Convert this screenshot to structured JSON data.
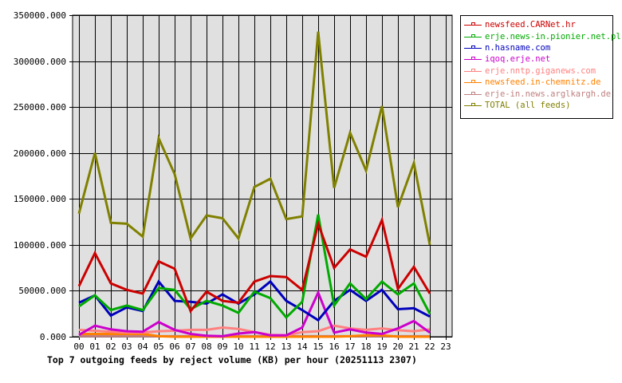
{
  "chart_data": {
    "type": "line",
    "title": "Top 7 outgoing feeds by reject volume (KB) per hour (20251113 2307)",
    "xlabel": "",
    "ylabel": "",
    "x": [
      "00",
      "01",
      "02",
      "03",
      "04",
      "05",
      "06",
      "07",
      "08",
      "09",
      "10",
      "11",
      "12",
      "13",
      "14",
      "15",
      "16",
      "17",
      "18",
      "19",
      "20",
      "21",
      "22",
      "23"
    ],
    "ylim": [
      0,
      350000
    ],
    "yticks": [
      "0.000",
      "50000.000",
      "100000.000",
      "150000.000",
      "200000.000",
      "250000.000",
      "300000.000",
      "350000.000"
    ],
    "ytick_values": [
      0,
      50000,
      100000,
      150000,
      200000,
      250000,
      300000,
      350000
    ],
    "grid": true,
    "legend_position": "right",
    "series": [
      {
        "name": "newsfeed.CARNet.hr",
        "color": "#cc0000",
        "values": [
          55000,
          91000,
          58000,
          51000,
          47000,
          82000,
          74000,
          28000,
          49000,
          39000,
          37000,
          60000,
          66000,
          65000,
          51000,
          123000,
          75000,
          95000,
          87000,
          127000,
          52000,
          76000,
          47000
        ]
      },
      {
        "name": "erje.news-in.pionier.net.pl",
        "color": "#00aa00",
        "values": [
          33000,
          45000,
          29000,
          34000,
          29000,
          53000,
          51000,
          30000,
          39000,
          34000,
          26000,
          49000,
          42000,
          21000,
          38000,
          133000,
          34000,
          58000,
          41000,
          60000,
          46000,
          58000,
          25000
        ]
      },
      {
        "name": "n.hasname.com",
        "color": "#0000bb",
        "values": [
          37000,
          45000,
          23000,
          32000,
          28000,
          60000,
          39000,
          38000,
          36000,
          46000,
          36000,
          46000,
          60000,
          39000,
          29000,
          18000,
          39000,
          51000,
          39000,
          51000,
          30000,
          31000,
          22000
        ]
      },
      {
        "name": "iqoq.erje.net",
        "color": "#cc00cc",
        "values": [
          2000,
          12000,
          8000,
          6000,
          5500,
          16000,
          7500,
          3000,
          1000,
          500,
          3500,
          5000,
          1500,
          1500,
          10000,
          48000,
          4500,
          8000,
          4500,
          3000,
          9000,
          17000,
          4500
        ]
      },
      {
        "name": "erje.nntp.giganews.com",
        "color": "#ff8080",
        "values": [
          7500,
          6500,
          5500,
          4500,
          4500,
          6000,
          6500,
          7500,
          7500,
          10000,
          8500,
          5000,
          2000,
          1500,
          5000,
          6000,
          12000,
          9000,
          7500,
          9000,
          7000,
          6000,
          8000
        ]
      },
      {
        "name": "newsfeed.in-chemnitz.de",
        "color": "#ff8000",
        "values": [
          3000,
          3000,
          3000,
          3000,
          3000,
          500,
          0,
          0,
          0,
          0,
          0,
          0,
          0,
          0,
          0,
          0,
          0,
          500,
          1500,
          1500,
          0,
          0,
          0
        ]
      },
      {
        "name": "erje-in.news.arglkargh.de",
        "color": "#c08080",
        "values": [
          500,
          500,
          500,
          500,
          500,
          500,
          500,
          500,
          500,
          500,
          500,
          500,
          500,
          500,
          500,
          500,
          500,
          500,
          500,
          500,
          500,
          500,
          500
        ]
      },
      {
        "name": "TOTAL (all feeds)",
        "color": "#808000",
        "values": [
          134000,
          200000,
          124000,
          123000,
          109000,
          216000,
          177000,
          107000,
          132000,
          129000,
          107000,
          163000,
          172000,
          128000,
          131000,
          332000,
          162000,
          222000,
          181000,
          251000,
          141000,
          189000,
          100000
        ]
      }
    ]
  },
  "legend": {
    "items": [
      {
        "label": "newsfeed.CARNet.hr",
        "color": "#cc0000"
      },
      {
        "label": "erje.news-in.pionier.net.pl",
        "color": "#00aa00"
      },
      {
        "label": "n.hasname.com",
        "color": "#0000bb"
      },
      {
        "label": "iqoq.erje.net",
        "color": "#cc00cc"
      },
      {
        "label": "erje.nntp.giganews.com",
        "color": "#ff8080"
      },
      {
        "label": "newsfeed.in-chemnitz.de",
        "color": "#ff8000"
      },
      {
        "label": "erje-in.news.arglkargh.de",
        "color": "#c08080"
      },
      {
        "label": "TOTAL (all feeds)",
        "color": "#808000"
      }
    ]
  },
  "colors": {
    "plot_background": "#e0e0e0",
    "grid": "#000000",
    "axis_text": "#000000"
  }
}
